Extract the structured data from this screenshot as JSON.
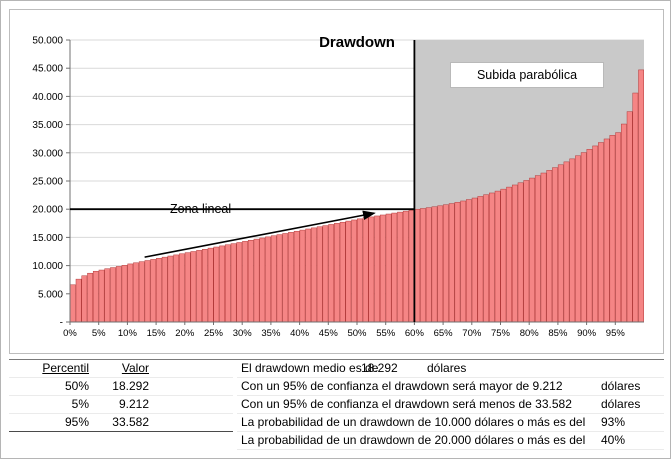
{
  "chart_data": {
    "type": "bar",
    "title": "Drawdown",
    "xlabel": "",
    "ylabel": "",
    "ylim": [
      0,
      50000
    ],
    "y_tick_labels": [
      "-",
      "5.000",
      "10.000",
      "15.000",
      "20.000",
      "25.000",
      "30.000",
      "35.000",
      "40.000",
      "45.000",
      "50.000"
    ],
    "x_tick_labels": [
      "0%",
      "5%",
      "10%",
      "15%",
      "20%",
      "25%",
      "30%",
      "35%",
      "40%",
      "45%",
      "50%",
      "55%",
      "60%",
      "65%",
      "70%",
      "75%",
      "80%",
      "85%",
      "90%",
      "95%"
    ],
    "values": [
      6600,
      7600,
      8200,
      8650,
      9000,
      9212,
      9450,
      9650,
      9850,
      10050,
      10300,
      10500,
      10700,
      10899,
      11099,
      11299,
      11499,
      11699,
      11898,
      12098,
      12298,
      12498,
      12698,
      12897,
      13097,
      13297,
      13497,
      13697,
      13896,
      14096,
      14296,
      14496,
      14696,
      14895,
      15095,
      15295,
      15495,
      15695,
      15894,
      16094,
      16294,
      16494,
      16694,
      16893,
      17093,
      17293,
      17493,
      17693,
      17892,
      18092,
      18292,
      18463,
      18634,
      18804,
      18975,
      19146,
      19317,
      19488,
      19658,
      19829,
      20000,
      20128,
      20271,
      20430,
      20605,
      20795,
      21001,
      21222,
      21459,
      21712,
      21980,
      22264,
      22563,
      22878,
      23209,
      23555,
      23917,
      24294,
      24687,
      25096,
      25520,
      25960,
      26415,
      26886,
      27373,
      27875,
      28393,
      28926,
      29475,
      30040,
      30620,
      31216,
      31827,
      32454,
      33097,
      33582,
      35100,
      37300,
      40600,
      44700
    ],
    "annotations": {
      "hline_value": 20000,
      "vline_percent": 60,
      "zone_start_percent": 60,
      "linear_zone_label": "Zona lineal",
      "parabolic_zone_label": "Subida parabólica",
      "arrow": {
        "from_percent": 13,
        "from_value": 11500,
        "to_percent": 53,
        "to_value": 19300
      }
    },
    "colors": {
      "bar_fill": "#F58585",
      "bar_stroke": "#B23A3A",
      "zone_fill": "#C9C9C9",
      "gridline": "#D9D9D9",
      "axis": "#707070"
    }
  },
  "table": {
    "headers": [
      "Percentil",
      "Valor"
    ],
    "rows": [
      [
        "50%",
        "18.292"
      ],
      [
        "5%",
        "9.212"
      ],
      [
        "95%",
        "33.582"
      ]
    ]
  },
  "statements": [
    {
      "text": "El drawdown medio es de",
      "value": "18.292",
      "unit": "dólares"
    },
    {
      "text": "Con un 95% de confianza el drawdown será mayor de 9.212",
      "unit": "dólares"
    },
    {
      "text": "Con un 95% de confianza el drawdown será menos de 33.582",
      "unit": "dólares"
    },
    {
      "text": "La probabilidad de un drawdown de 10.000 dólares o más es del",
      "unit": "93%"
    },
    {
      "text": "La probabilidad de un drawdown de 20.000 dólares o más es del",
      "unit": "40%"
    }
  ]
}
